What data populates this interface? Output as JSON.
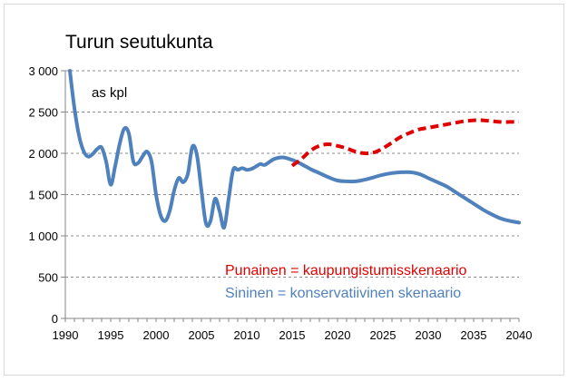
{
  "chart_data": {
    "type": "line",
    "title": "Turun seutukunta",
    "unit_label": "as kpl",
    "xlim": [
      1990,
      2040
    ],
    "ylim": [
      0,
      3000
    ],
    "x_ticks": [
      1990,
      1995,
      2000,
      2005,
      2010,
      2015,
      2020,
      2025,
      2030,
      2035,
      2040
    ],
    "y_ticks": [
      {
        "value": 0,
        "label": "0"
      },
      {
        "value": 500,
        "label": "500"
      },
      {
        "value": 1000,
        "label": "1 000"
      },
      {
        "value": 1500,
        "label": "1 500"
      },
      {
        "value": 2000,
        "label": "2 000"
      },
      {
        "value": 2500,
        "label": "2 500"
      },
      {
        "value": 3000,
        "label": "3 000"
      }
    ],
    "grid": "horizontal-dashed",
    "series": [
      {
        "name": "Sininen = konservatiivinen skenaario",
        "color": "#4f81bd",
        "style": "solid",
        "x": [
          1990.5,
          1991,
          1991.5,
          1992,
          1992.5,
          1993,
          1993.5,
          1994,
          1994.5,
          1995,
          1995.5,
          1996,
          1996.5,
          1997,
          1997.5,
          1998,
          1998.5,
          1999,
          1999.5,
          2000,
          2000.5,
          2001,
          2001.5,
          2002,
          2002.5,
          2003,
          2003.5,
          2004,
          2004.5,
          2005,
          2005.5,
          2006,
          2006.5,
          2007,
          2007.5,
          2008,
          2008.5,
          2009,
          2009.5,
          2010,
          2010.5,
          2011,
          2011.5,
          2012,
          2013,
          2014,
          2015,
          2016,
          2017,
          2018,
          2019,
          2020,
          2021,
          2022,
          2023,
          2024,
          2025,
          2026,
          2027,
          2028,
          2029,
          2030,
          2031,
          2032,
          2033,
          2034,
          2035,
          2036,
          2037,
          2038,
          2039,
          2040
        ],
        "values": [
          3000,
          2550,
          2220,
          2030,
          1960,
          1990,
          2050,
          2070,
          1900,
          1620,
          1850,
          2120,
          2300,
          2240,
          1900,
          1880,
          1960,
          2020,
          1900,
          1500,
          1250,
          1180,
          1300,
          1550,
          1700,
          1650,
          1750,
          2080,
          1980,
          1550,
          1150,
          1180,
          1450,
          1300,
          1100,
          1450,
          1800,
          1800,
          1820,
          1800,
          1810,
          1840,
          1870,
          1860,
          1930,
          1950,
          1920,
          1870,
          1810,
          1760,
          1710,
          1670,
          1660,
          1660,
          1680,
          1710,
          1740,
          1760,
          1770,
          1770,
          1750,
          1700,
          1650,
          1600,
          1530,
          1460,
          1390,
          1320,
          1260,
          1210,
          1180,
          1160
        ]
      },
      {
        "name": "Punainen = kaupungistumisskenaario",
        "color": "#e00000",
        "style": "dashed",
        "x": [
          2015,
          2016,
          2017,
          2018,
          2019,
          2020,
          2021,
          2022,
          2023,
          2024,
          2025,
          2026,
          2027,
          2028,
          2029,
          2030,
          2031,
          2032,
          2033,
          2034,
          2035,
          2036,
          2037,
          2038,
          2039,
          2040
        ],
        "values": [
          1850,
          1930,
          2030,
          2090,
          2110,
          2090,
          2060,
          2020,
          2000,
          2010,
          2060,
          2130,
          2200,
          2250,
          2290,
          2310,
          2330,
          2350,
          2370,
          2390,
          2400,
          2400,
          2390,
          2380,
          2380,
          2380
        ]
      }
    ],
    "legend": [
      {
        "label": "Punainen = kaupungistumisskenaario",
        "color": "#e00000"
      },
      {
        "label": "Sininen = konservatiivinen skenaario",
        "color": "#4f81bd"
      }
    ]
  }
}
